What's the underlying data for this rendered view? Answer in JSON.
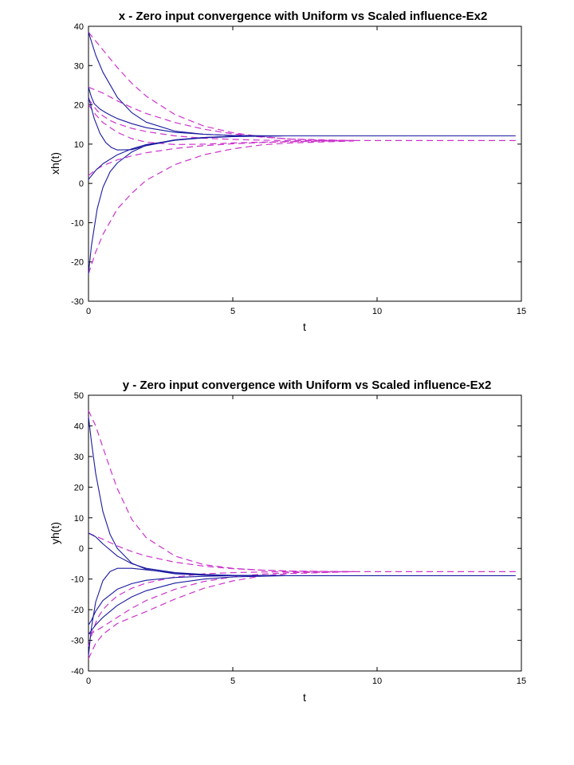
{
  "chart_data": [
    {
      "type": "line",
      "title": "x - Zero input convergence with Uniform vs Scaled influence-Ex2",
      "xlabel": "t",
      "ylabel": "xh(t)",
      "xlim": [
        0,
        15
      ],
      "ylim": [
        -30,
        40
      ],
      "xticks": [
        0,
        5,
        10,
        15
      ],
      "yticks": [
        -30,
        -20,
        -10,
        0,
        10,
        20,
        30,
        40
      ],
      "grid": false,
      "style": {
        "uniform": {
          "color": "#1a1aa0",
          "dash": "solid"
        },
        "scaled": {
          "color": "#cc33cc",
          "dash": "dashed"
        }
      },
      "series": [
        {
          "group": "uniform",
          "x": [
            0,
            0.25,
            0.5,
            1,
            1.5,
            2,
            3,
            4,
            5,
            6,
            6.8
          ],
          "y": [
            38.5,
            32.7,
            28.3,
            21.9,
            18.0,
            15.6,
            13.3,
            12.5,
            12.2,
            12.1,
            12.1
          ]
        },
        {
          "group": "uniform",
          "x": [
            0,
            0.2,
            0.4,
            0.6,
            0.8,
            1,
            1.5,
            2,
            3,
            4,
            5,
            6.8
          ],
          "y": [
            22,
            16.5,
            12.7,
            10.4,
            9.1,
            8.5,
            8.6,
            9.6,
            11.0,
            11.7,
            12.0,
            12.1
          ]
        },
        {
          "group": "uniform",
          "x": [
            0,
            0.1,
            0.2,
            0.4,
            0.6,
            0.8,
            1,
            1.5,
            2,
            3,
            4,
            5,
            6.8
          ],
          "y": [
            24.5,
            22,
            20.3,
            18.9,
            18.0,
            17.2,
            16.5,
            15.2,
            14.2,
            13.0,
            12.5,
            12.2,
            12.1
          ]
        },
        {
          "group": "uniform",
          "x": [
            0,
            0.25,
            0.5,
            1,
            1.5,
            2,
            3,
            4,
            5,
            6.8
          ],
          "y": [
            1,
            3.3,
            5.0,
            7.3,
            8.8,
            9.9,
            11.0,
            11.6,
            11.9,
            12.1
          ]
        },
        {
          "group": "uniform",
          "x": [
            0,
            0.1,
            0.3,
            0.5,
            0.75,
            1,
            1.5,
            2,
            3,
            4,
            5,
            6.8
          ],
          "y": [
            -23,
            -16,
            -6.5,
            -1.0,
            3.0,
            5.2,
            8.0,
            9.7,
            11.1,
            11.7,
            12.0,
            12.1
          ]
        },
        {
          "group": "uniform",
          "x": [
            6.8,
            8,
            10,
            12,
            14.8
          ],
          "y": [
            12.1,
            12.1,
            12.1,
            12.1,
            12.1
          ]
        },
        {
          "group": "scaled",
          "x": [
            0,
            0.5,
            1,
            1.5,
            2,
            3,
            4,
            5,
            6,
            7,
            8,
            9.2
          ],
          "y": [
            38.5,
            34.0,
            29.5,
            25.5,
            22.2,
            17.5,
            14.6,
            12.9,
            11.9,
            11.3,
            11.0,
            10.9
          ]
        },
        {
          "group": "scaled",
          "x": [
            0,
            0.5,
            1,
            1.5,
            2,
            3,
            4,
            5,
            6,
            7,
            9.2
          ],
          "y": [
            24.5,
            23.0,
            21.0,
            19.3,
            17.8,
            15.5,
            13.8,
            12.6,
            11.8,
            11.3,
            10.9
          ]
        },
        {
          "group": "scaled",
          "x": [
            0,
            0.15,
            0.3,
            0.5,
            0.75,
            1,
            1.5,
            2,
            3,
            4,
            5,
            6,
            7,
            9.2
          ],
          "y": [
            21.5,
            20.0,
            18.5,
            17.2,
            16.0,
            15.2,
            14.0,
            13.2,
            12.1,
            11.5,
            11.2,
            11.0,
            10.9,
            10.9
          ]
        },
        {
          "group": "scaled",
          "x": [
            0,
            0.25,
            0.5,
            1,
            1.5,
            2,
            3,
            4,
            5,
            6,
            7,
            9.2
          ],
          "y": [
            20,
            17.5,
            15.5,
            13.0,
            11.4,
            10.5,
            9.9,
            10.0,
            10.3,
            10.5,
            10.7,
            10.9
          ]
        },
        {
          "group": "scaled",
          "x": [
            0,
            0.25,
            0.5,
            1,
            1.5,
            2,
            3,
            4,
            5,
            6,
            7,
            9.2
          ],
          "y": [
            2,
            3.5,
            4.5,
            6.0,
            7.0,
            7.8,
            8.9,
            9.6,
            10.1,
            10.4,
            10.6,
            10.9
          ]
        },
        {
          "group": "scaled",
          "x": [
            0,
            0.25,
            0.5,
            1,
            1.5,
            2,
            3,
            4,
            5,
            6,
            7,
            9.2
          ],
          "y": [
            -23,
            -17.5,
            -13,
            -6.5,
            -2.5,
            0.8,
            4.8,
            7.3,
            8.8,
            9.8,
            10.3,
            10.8
          ]
        },
        {
          "group": "scaled",
          "x": [
            9.2,
            10,
            12,
            14.8
          ],
          "y": [
            10.9,
            10.9,
            10.9,
            10.9
          ]
        }
      ]
    },
    {
      "type": "line",
      "title": "y - Zero input convergence with Uniform vs Scaled influence-Ex2",
      "xlabel": "t",
      "ylabel": "yh(t)",
      "xlim": [
        0,
        15
      ],
      "ylim": [
        -40,
        50
      ],
      "xticks": [
        0,
        5,
        10,
        15
      ],
      "yticks": [
        -40,
        -30,
        -20,
        -10,
        0,
        10,
        20,
        30,
        40,
        50
      ],
      "grid": false,
      "style": {
        "uniform": {
          "color": "#1a1aa0",
          "dash": "solid"
        },
        "scaled": {
          "color": "#cc33cc",
          "dash": "dashed"
        }
      },
      "series": [
        {
          "group": "uniform",
          "x": [
            0,
            0.1,
            0.25,
            0.5,
            0.75,
            1,
            1.5,
            2,
            3,
            4,
            5,
            6.8
          ],
          "y": [
            43,
            35,
            24.5,
            12.0,
            4.5,
            0.0,
            -4.8,
            -6.8,
            -8.3,
            -8.7,
            -8.9,
            -8.9
          ]
        },
        {
          "group": "uniform",
          "x": [
            0,
            0.25,
            0.5,
            1,
            1.5,
            2,
            3,
            4,
            5,
            6.8
          ],
          "y": [
            5,
            3.8,
            1.5,
            -2.5,
            -5.0,
            -6.5,
            -7.9,
            -8.5,
            -8.8,
            -8.9
          ]
        },
        {
          "group": "uniform",
          "x": [
            0,
            0.1,
            0.25,
            0.5,
            0.75,
            1,
            1.5,
            2,
            3,
            4,
            5,
            6.8
          ],
          "y": [
            -35,
            -26,
            -17.5,
            -10.5,
            -7.5,
            -6.5,
            -6.5,
            -7.0,
            -8.0,
            -8.6,
            -8.8,
            -8.9
          ]
        },
        {
          "group": "uniform",
          "x": [
            0,
            0.1,
            0.25,
            0.5,
            1,
            1.5,
            2,
            3,
            4,
            5,
            6.8
          ],
          "y": [
            -25,
            -23.5,
            -20.5,
            -17.0,
            -13.3,
            -11.5,
            -10.4,
            -9.5,
            -9.1,
            -8.9,
            -8.9
          ]
        },
        {
          "group": "uniform",
          "x": [
            0,
            0.25,
            0.5,
            1,
            1.5,
            2,
            3,
            4,
            5,
            6.8
          ],
          "y": [
            -28,
            -25.0,
            -22.5,
            -18.6,
            -15.8,
            -13.8,
            -11.3,
            -10.0,
            -9.3,
            -8.9
          ]
        },
        {
          "group": "uniform",
          "x": [
            6.8,
            8,
            10,
            12,
            14.8
          ],
          "y": [
            -8.9,
            -8.9,
            -8.9,
            -8.9,
            -8.9
          ]
        },
        {
          "group": "scaled",
          "x": [
            0,
            0.25,
            0.5,
            0.75,
            1,
            1.5,
            2,
            3,
            4,
            5,
            6,
            7,
            9.2
          ],
          "y": [
            45,
            40,
            33,
            26,
            19.5,
            9.5,
            3.5,
            -2.5,
            -5.3,
            -6.5,
            -7.1,
            -7.4,
            -7.6
          ]
        },
        {
          "group": "scaled",
          "x": [
            0,
            0.5,
            1,
            1.5,
            2,
            3,
            4,
            5,
            6,
            7,
            9.2
          ],
          "y": [
            5,
            3.0,
            0.8,
            -1.0,
            -2.5,
            -4.5,
            -5.8,
            -6.6,
            -7.1,
            -7.4,
            -7.6
          ]
        },
        {
          "group": "scaled",
          "x": [
            0,
            0.15,
            0.3,
            0.5,
            0.75,
            1,
            1.5,
            2,
            3,
            4,
            5,
            6,
            7,
            9.2
          ],
          "y": [
            -32,
            -27,
            -23,
            -20,
            -17.5,
            -15.5,
            -13,
            -11.3,
            -9.3,
            -8.3,
            -7.9,
            -7.7,
            -7.6,
            -7.6
          ]
        },
        {
          "group": "scaled",
          "x": [
            0,
            0.25,
            0.5,
            1,
            1.5,
            2,
            3,
            4,
            5,
            6,
            7,
            9.2
          ],
          "y": [
            -28,
            -27,
            -25.5,
            -22.5,
            -19.5,
            -17.0,
            -13.3,
            -10.8,
            -9.3,
            -8.4,
            -7.9,
            -7.6
          ]
        },
        {
          "group": "scaled",
          "x": [
            0,
            0.25,
            0.5,
            1,
            1.5,
            2,
            3,
            4,
            5,
            6,
            7,
            9.2
          ],
          "y": [
            -36,
            -31,
            -28,
            -24.5,
            -22.5,
            -20.6,
            -16.5,
            -13.0,
            -10.6,
            -9.0,
            -8.2,
            -7.6
          ]
        },
        {
          "group": "scaled",
          "x": [
            9.2,
            10,
            12,
            14.8
          ],
          "y": [
            -7.6,
            -7.6,
            -7.6,
            -7.6
          ]
        }
      ]
    }
  ]
}
